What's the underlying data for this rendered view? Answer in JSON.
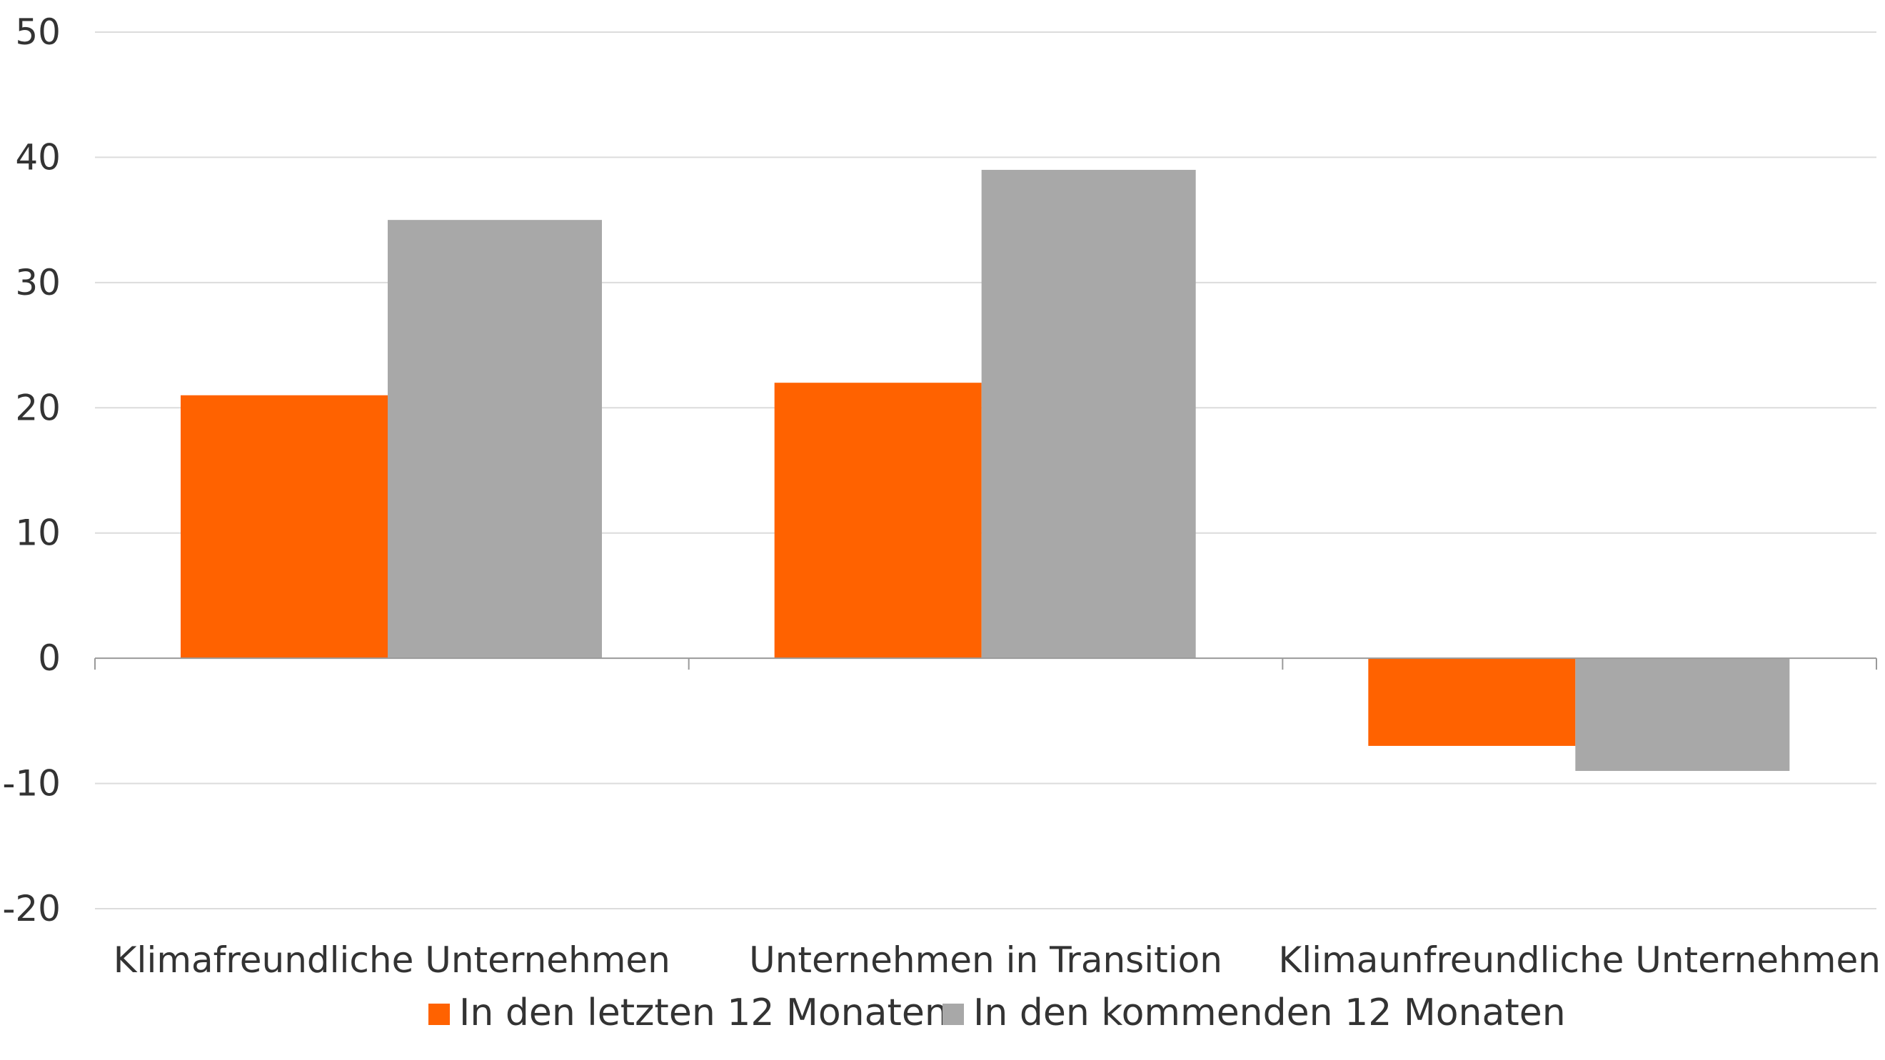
{
  "chart_data": {
    "type": "bar",
    "categories": [
      "Klimafreundliche Unternehmen",
      "Unternehmen in Transition",
      "Klimaunfreundliche Unternehmen"
    ],
    "series": [
      {
        "name": "In den letzten 12 Monaten",
        "color": "#ff6200",
        "values": [
          21,
          22,
          -7
        ]
      },
      {
        "name": "In den kommenden 12 Monaten",
        "color": "#a8a8a8",
        "values": [
          35,
          39,
          -9
        ]
      }
    ],
    "title": "",
    "xlabel": "",
    "ylabel": "",
    "ylim": [
      -20,
      50
    ],
    "yticks": [
      50,
      40,
      30,
      20,
      10,
      0,
      -10,
      -20
    ],
    "ytick_labels": [
      "50",
      "40",
      "30",
      "20",
      "10",
      "0",
      "-10",
      "-20"
    ],
    "grid": true,
    "legend_position": "bottom"
  }
}
